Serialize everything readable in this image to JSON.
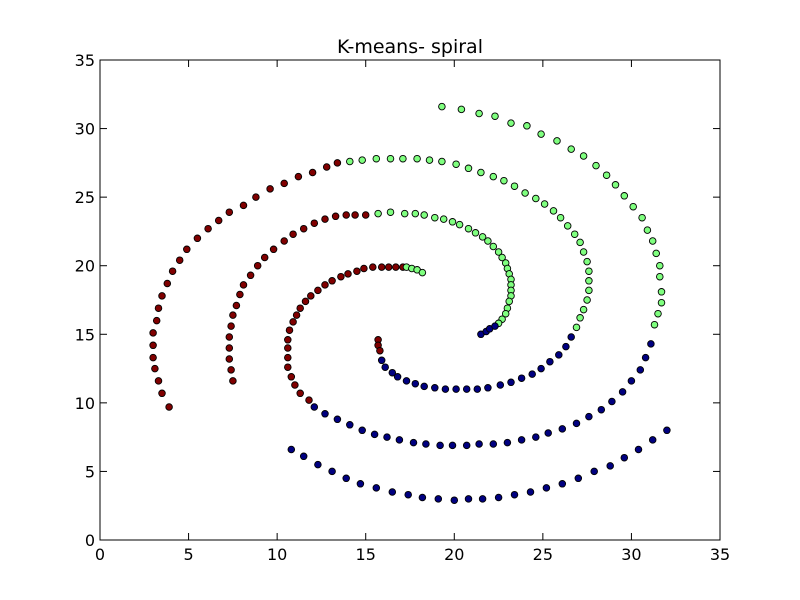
{
  "chart_data": {
    "type": "scatter",
    "title": "K-means- spiral",
    "xlabel": "",
    "ylabel": "",
    "xlim": [
      0,
      35
    ],
    "ylim": [
      0,
      35
    ],
    "xticks": [
      "0",
      "5",
      "10",
      "15",
      "20",
      "25",
      "30",
      "35"
    ],
    "yticks": [
      "0",
      "5",
      "10",
      "15",
      "20",
      "25",
      "30",
      "35"
    ],
    "grid": false,
    "legend": "none",
    "colors": {
      "red": "#800000",
      "green": "#7fff7f",
      "blue": "#000080"
    },
    "series": [
      {
        "color": "red",
        "points": [
          [
            3.9,
            9.7
          ],
          [
            3.5,
            10.7
          ],
          [
            3.3,
            11.6
          ],
          [
            3.1,
            12.5
          ],
          [
            3.0,
            13.3
          ],
          [
            3.0,
            14.2
          ],
          [
            3.0,
            15.1
          ],
          [
            3.2,
            16.0
          ],
          [
            3.3,
            16.9
          ],
          [
            3.5,
            17.8
          ],
          [
            3.8,
            18.7
          ],
          [
            4.1,
            19.6
          ],
          [
            4.5,
            20.4
          ],
          [
            4.9,
            21.2
          ],
          [
            5.5,
            22.0
          ],
          [
            6.1,
            22.7
          ],
          [
            6.7,
            23.3
          ],
          [
            7.3,
            23.9
          ],
          [
            8.1,
            24.4
          ],
          [
            8.8,
            25.0
          ],
          [
            9.6,
            25.6
          ],
          [
            10.4,
            26.0
          ],
          [
            11.2,
            26.5
          ],
          [
            12.0,
            26.8
          ],
          [
            12.8,
            27.2
          ],
          [
            13.4,
            27.5
          ],
          [
            7.5,
            11.6
          ],
          [
            7.4,
            12.4
          ],
          [
            7.3,
            13.2
          ],
          [
            7.3,
            14.0
          ],
          [
            7.3,
            14.8
          ],
          [
            7.4,
            15.6
          ],
          [
            7.5,
            16.4
          ],
          [
            7.7,
            17.1
          ],
          [
            7.9,
            17.9
          ],
          [
            8.1,
            18.6
          ],
          [
            8.5,
            19.3
          ],
          [
            8.9,
            20.0
          ],
          [
            9.3,
            20.6
          ],
          [
            9.8,
            21.2
          ],
          [
            10.4,
            21.8
          ],
          [
            10.9,
            22.3
          ],
          [
            11.5,
            22.7
          ],
          [
            12.1,
            23.1
          ],
          [
            12.7,
            23.4
          ],
          [
            13.3,
            23.6
          ],
          [
            13.9,
            23.7
          ],
          [
            14.4,
            23.7
          ],
          [
            15.0,
            23.7
          ],
          [
            11.8,
            10.2
          ],
          [
            11.3,
            10.7
          ],
          [
            11.0,
            11.3
          ],
          [
            10.8,
            11.9
          ],
          [
            10.6,
            12.6
          ],
          [
            10.6,
            13.3
          ],
          [
            10.6,
            14.0
          ],
          [
            10.6,
            14.6
          ],
          [
            10.7,
            15.3
          ],
          [
            10.9,
            15.9
          ],
          [
            11.1,
            16.4
          ],
          [
            11.3,
            16.9
          ],
          [
            11.6,
            17.4
          ],
          [
            11.9,
            17.8
          ],
          [
            12.3,
            18.2
          ],
          [
            12.7,
            18.6
          ],
          [
            13.1,
            18.9
          ],
          [
            13.6,
            19.2
          ],
          [
            14.0,
            19.4
          ],
          [
            14.5,
            19.6
          ],
          [
            14.9,
            19.8
          ],
          [
            15.4,
            19.9
          ],
          [
            15.9,
            19.9
          ],
          [
            16.3,
            19.9
          ],
          [
            16.7,
            19.9
          ],
          [
            17.1,
            19.9
          ],
          [
            15.7,
            14.6
          ],
          [
            15.7,
            14.2
          ],
          [
            15.8,
            13.8
          ]
        ]
      },
      {
        "color": "green",
        "points": [
          [
            19.3,
            31.6
          ],
          [
            20.4,
            31.4
          ],
          [
            21.4,
            31.1
          ],
          [
            22.3,
            30.9
          ],
          [
            23.2,
            30.4
          ],
          [
            24.1,
            30.2
          ],
          [
            24.9,
            29.6
          ],
          [
            25.8,
            29.1
          ],
          [
            26.6,
            28.5
          ],
          [
            27.3,
            28.0
          ],
          [
            28.0,
            27.3
          ],
          [
            28.6,
            26.6
          ],
          [
            29.1,
            25.9
          ],
          [
            29.6,
            25.1
          ],
          [
            30.1,
            24.3
          ],
          [
            30.6,
            23.5
          ],
          [
            30.9,
            22.6
          ],
          [
            31.2,
            21.8
          ],
          [
            31.4,
            20.9
          ],
          [
            31.6,
            20.0
          ],
          [
            31.6,
            19.2
          ],
          [
            31.7,
            18.1
          ],
          [
            31.7,
            17.3
          ],
          [
            31.5,
            16.5
          ],
          [
            31.3,
            15.7
          ],
          [
            14.1,
            27.6
          ],
          [
            14.8,
            27.7
          ],
          [
            15.6,
            27.8
          ],
          [
            16.4,
            27.8
          ],
          [
            17.1,
            27.8
          ],
          [
            17.9,
            27.8
          ],
          [
            18.6,
            27.7
          ],
          [
            19.3,
            27.6
          ],
          [
            20.1,
            27.4
          ],
          [
            20.8,
            27.1
          ],
          [
            21.5,
            26.8
          ],
          [
            22.2,
            26.5
          ],
          [
            22.8,
            26.2
          ],
          [
            23.4,
            25.8
          ],
          [
            24.0,
            25.3
          ],
          [
            24.6,
            24.9
          ],
          [
            25.1,
            24.5
          ],
          [
            25.6,
            24.0
          ],
          [
            26.0,
            23.5
          ],
          [
            26.4,
            22.9
          ],
          [
            26.8,
            22.3
          ],
          [
            27.1,
            21.7
          ],
          [
            27.3,
            21.0
          ],
          [
            27.5,
            20.3
          ],
          [
            27.6,
            19.6
          ],
          [
            27.6,
            18.9
          ],
          [
            27.6,
            18.2
          ],
          [
            27.5,
            17.5
          ],
          [
            27.3,
            16.8
          ],
          [
            27.1,
            16.2
          ],
          [
            26.9,
            15.5
          ],
          [
            15.7,
            23.8
          ],
          [
            16.4,
            23.9
          ],
          [
            17.2,
            23.8
          ],
          [
            17.8,
            23.8
          ],
          [
            18.3,
            23.7
          ],
          [
            18.9,
            23.5
          ],
          [
            19.4,
            23.4
          ],
          [
            19.9,
            23.2
          ],
          [
            20.3,
            23.0
          ],
          [
            20.8,
            22.7
          ],
          [
            21.2,
            22.4
          ],
          [
            21.6,
            22.1
          ],
          [
            21.9,
            21.8
          ],
          [
            22.2,
            21.4
          ],
          [
            22.5,
            21.0
          ],
          [
            22.7,
            20.6
          ],
          [
            22.9,
            20.2
          ],
          [
            23.0,
            19.8
          ],
          [
            23.1,
            19.4
          ],
          [
            23.2,
            19.0
          ],
          [
            23.2,
            18.6
          ],
          [
            23.2,
            18.2
          ],
          [
            23.2,
            17.8
          ],
          [
            23.1,
            17.4
          ],
          [
            23.0,
            16.9
          ],
          [
            22.9,
            16.5
          ],
          [
            22.7,
            16.1
          ],
          [
            22.5,
            15.8
          ],
          [
            17.3,
            19.9
          ],
          [
            17.6,
            19.8
          ],
          [
            17.9,
            19.7
          ],
          [
            18.2,
            19.5
          ]
        ]
      },
      {
        "color": "blue",
        "points": [
          [
            32.0,
            8.0
          ],
          [
            31.2,
            7.3
          ],
          [
            30.4,
            6.6
          ],
          [
            29.6,
            6.0
          ],
          [
            28.8,
            5.4
          ],
          [
            27.9,
            5.0
          ],
          [
            27.0,
            4.5
          ],
          [
            26.1,
            4.1
          ],
          [
            25.2,
            3.8
          ],
          [
            24.3,
            3.5
          ],
          [
            23.4,
            3.3
          ],
          [
            22.5,
            3.1
          ],
          [
            21.6,
            3.0
          ],
          [
            20.8,
            3.0
          ],
          [
            20.0,
            2.9
          ],
          [
            19.1,
            3.0
          ],
          [
            18.2,
            3.1
          ],
          [
            17.4,
            3.3
          ],
          [
            16.5,
            3.5
          ],
          [
            15.6,
            3.8
          ],
          [
            14.7,
            4.1
          ],
          [
            13.9,
            4.5
          ],
          [
            13.1,
            5.0
          ],
          [
            12.3,
            5.5
          ],
          [
            11.5,
            6.1
          ],
          [
            10.8,
            6.6
          ],
          [
            31.1,
            14.3
          ],
          [
            30.8,
            13.3
          ],
          [
            30.5,
            12.4
          ],
          [
            30.0,
            11.6
          ],
          [
            29.5,
            10.8
          ],
          [
            28.9,
            10.1
          ],
          [
            28.3,
            9.5
          ],
          [
            27.6,
            9.0
          ],
          [
            26.9,
            8.5
          ],
          [
            26.1,
            8.1
          ],
          [
            25.3,
            7.8
          ],
          [
            24.6,
            7.5
          ],
          [
            23.8,
            7.3
          ],
          [
            23.0,
            7.1
          ],
          [
            22.2,
            7.0
          ],
          [
            21.4,
            7.0
          ],
          [
            20.7,
            6.9
          ],
          [
            19.9,
            6.9
          ],
          [
            19.2,
            6.9
          ],
          [
            18.4,
            7.0
          ],
          [
            17.7,
            7.1
          ],
          [
            16.9,
            7.3
          ],
          [
            16.2,
            7.5
          ],
          [
            15.5,
            7.7
          ],
          [
            14.8,
            8.0
          ],
          [
            14.1,
            8.4
          ],
          [
            13.4,
            8.8
          ],
          [
            12.7,
            9.2
          ],
          [
            12.1,
            9.7
          ],
          [
            26.6,
            14.8
          ],
          [
            26.3,
            14.1
          ],
          [
            25.9,
            13.5
          ],
          [
            25.4,
            13.0
          ],
          [
            24.9,
            12.5
          ],
          [
            24.4,
            12.1
          ],
          [
            23.8,
            11.8
          ],
          [
            23.2,
            11.5
          ],
          [
            22.6,
            11.3
          ],
          [
            21.9,
            11.1
          ],
          [
            21.3,
            11.0
          ],
          [
            20.7,
            11.0
          ],
          [
            20.1,
            11.0
          ],
          [
            19.5,
            11.0
          ],
          [
            18.9,
            11.1
          ],
          [
            18.3,
            11.2
          ],
          [
            17.8,
            11.4
          ],
          [
            17.3,
            11.6
          ],
          [
            16.8,
            11.9
          ],
          [
            16.5,
            12.2
          ],
          [
            16.1,
            12.6
          ],
          [
            15.9,
            13.1
          ],
          [
            21.5,
            15.0
          ],
          [
            21.8,
            15.2
          ],
          [
            22.0,
            15.4
          ],
          [
            22.3,
            15.6
          ]
        ]
      }
    ]
  }
}
